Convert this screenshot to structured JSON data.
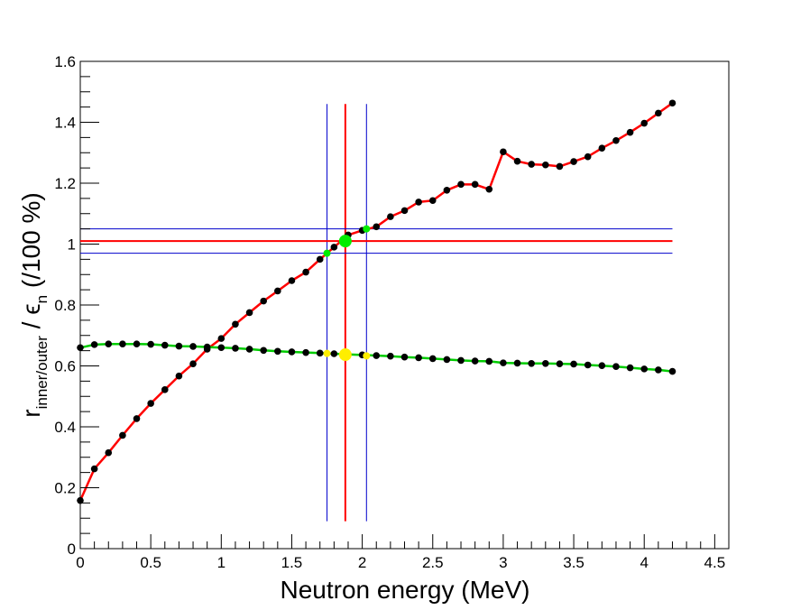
{
  "chart_data": {
    "type": "line",
    "xlabel": "Neutron energy (MeV)",
    "ylabel": {
      "r": "r",
      "r_subscript": "inner/outer",
      "sep": " / ",
      "eps": "ϵ",
      "eps_subscript": "n",
      "unit": " (/100 %)"
    },
    "xlim": [
      0,
      4.6
    ],
    "ylim": [
      0,
      1.6
    ],
    "x_ticks": [
      0,
      0.5,
      1,
      1.5,
      2,
      2.5,
      3,
      3.5,
      4,
      4.5
    ],
    "x_tick_labels": [
      "0",
      "0.5",
      "1",
      "1.5",
      "2",
      "2.5",
      "3",
      "3.5",
      "4",
      "4.5"
    ],
    "y_ticks": [
      0,
      0.2,
      0.4,
      0.6,
      0.8,
      1,
      1.2,
      1.4,
      1.6
    ],
    "y_tick_labels": [
      "0",
      "0.2",
      "0.4",
      "0.6",
      "0.8",
      "1",
      "1.2",
      "1.4",
      "1.6"
    ],
    "grid": false,
    "legend": "none",
    "series": [
      {
        "line_color": "#ff0000",
        "marker_color": "#000000",
        "x": [
          0,
          0.1,
          0.2,
          0.3,
          0.4,
          0.5,
          0.6,
          0.7,
          0.8,
          0.9,
          1.0,
          1.1,
          1.2,
          1.3,
          1.4,
          1.5,
          1.6,
          1.7,
          1.8,
          1.9,
          2.0,
          2.1,
          2.2,
          2.3,
          2.4,
          2.5,
          2.6,
          2.7,
          2.8,
          2.9,
          3.0,
          3.1,
          3.2,
          3.3,
          3.4,
          3.5,
          3.6,
          3.7,
          3.8,
          3.9,
          4.0,
          4.1,
          4.2
        ],
        "y": [
          0.158,
          0.262,
          0.315,
          0.372,
          0.427,
          0.477,
          0.522,
          0.567,
          0.607,
          0.655,
          0.69,
          0.737,
          0.775,
          0.813,
          0.846,
          0.88,
          0.908,
          0.95,
          0.99,
          1.03,
          1.045,
          1.057,
          1.09,
          1.11,
          1.138,
          1.143,
          1.177,
          1.196,
          1.196,
          1.18,
          1.303,
          1.272,
          1.262,
          1.26,
          1.255,
          1.271,
          1.287,
          1.315,
          1.34,
          1.367,
          1.397,
          1.43,
          1.463
        ]
      },
      {
        "line_color": "#00cc00",
        "marker_color": "#000000",
        "x": [
          0,
          0.1,
          0.2,
          0.3,
          0.4,
          0.5,
          0.6,
          0.7,
          0.8,
          0.9,
          1.0,
          1.1,
          1.2,
          1.3,
          1.4,
          1.5,
          1.6,
          1.7,
          1.8,
          1.9,
          2.0,
          2.1,
          2.2,
          2.3,
          2.4,
          2.5,
          2.6,
          2.7,
          2.8,
          2.9,
          3.0,
          3.1,
          3.2,
          3.3,
          3.4,
          3.5,
          3.6,
          3.7,
          3.8,
          3.9,
          4.0,
          4.1,
          4.2
        ],
        "y": [
          0.66,
          0.67,
          0.672,
          0.672,
          0.672,
          0.671,
          0.668,
          0.665,
          0.664,
          0.662,
          0.66,
          0.658,
          0.655,
          0.651,
          0.648,
          0.646,
          0.644,
          0.642,
          0.64,
          0.638,
          0.636,
          0.634,
          0.632,
          0.629,
          0.627,
          0.624,
          0.621,
          0.618,
          0.616,
          0.615,
          0.61,
          0.609,
          0.608,
          0.608,
          0.607,
          0.606,
          0.603,
          0.601,
          0.598,
          0.594,
          0.59,
          0.587,
          0.582
        ]
      }
    ],
    "reference_lines": [
      {
        "orientation": "vertical",
        "x": 1.88,
        "y_range": [
          0.09,
          1.46
        ],
        "color": "#ff0000"
      },
      {
        "orientation": "vertical",
        "x": 1.75,
        "y_range": [
          0.09,
          1.46
        ],
        "color": "#0000cc"
      },
      {
        "orientation": "vertical",
        "x": 2.03,
        "y_range": [
          0.09,
          1.46
        ],
        "color": "#0000cc"
      },
      {
        "orientation": "horizontal",
        "y": 1.01,
        "x_range": [
          0,
          4.2
        ],
        "color": "#ff0000"
      },
      {
        "orientation": "horizontal",
        "y": 1.05,
        "x_range": [
          0,
          4.2
        ],
        "color": "#0000cc"
      },
      {
        "orientation": "horizontal",
        "y": 0.97,
        "x_range": [
          0,
          4.2
        ],
        "color": "#0000cc"
      }
    ],
    "highlight_points": [
      {
        "x": 1.88,
        "y": 1.01,
        "color": "#00ee00",
        "size": "large"
      },
      {
        "x": 1.75,
        "y": 0.97,
        "color": "#00ee00",
        "size": "small"
      },
      {
        "x": 2.03,
        "y": 1.05,
        "color": "#00ee00",
        "size": "small"
      },
      {
        "x": 1.88,
        "y": 0.637,
        "color": "#ffee00",
        "size": "large"
      },
      {
        "x": 1.75,
        "y": 0.641,
        "color": "#ffee00",
        "size": "small"
      },
      {
        "x": 2.03,
        "y": 0.633,
        "color": "#ffee00",
        "size": "small"
      }
    ]
  }
}
